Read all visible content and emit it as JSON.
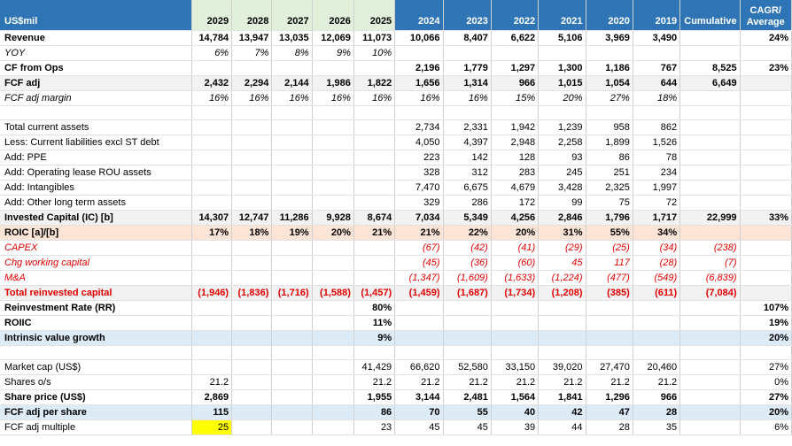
{
  "headers": [
    "US$mil",
    "2029",
    "2028",
    "2027",
    "2026",
    "2025",
    "2024",
    "2023",
    "2022",
    "2021",
    "2020",
    "2019",
    "Cumulative",
    "CAGR/ Average"
  ],
  "rows": [
    {
      "label": "Revenue",
      "style": "bold",
      "vals": [
        "14,784",
        "13,947",
        "13,035",
        "12,069",
        "11,073",
        "10,066",
        "8,407",
        "6,622",
        "5,106",
        "3,969",
        "3,490",
        "",
        "24%"
      ]
    },
    {
      "label": "YOY",
      "style": "ital",
      "vals": [
        "6%",
        "7%",
        "8%",
        "9%",
        "10%",
        "",
        "",
        "",
        "",
        "",
        "",
        "",
        ""
      ]
    },
    {
      "label": "CF from Ops",
      "style": "bold",
      "vals": [
        "",
        "",
        "",
        "",
        "",
        "2,196",
        "1,779",
        "1,297",
        "1,300",
        "1,186",
        "767",
        "8,525",
        "23%"
      ]
    },
    {
      "label": "FCF adj",
      "style": "bold grey",
      "vals": [
        "2,432",
        "2,294",
        "2,144",
        "1,986",
        "1,822",
        "1,656",
        "1,314",
        "966",
        "1,015",
        "1,054",
        "644",
        "6,649",
        ""
      ]
    },
    {
      "label": "FCF adj margin",
      "style": "ital",
      "vals": [
        "16%",
        "16%",
        "16%",
        "16%",
        "16%",
        "16%",
        "16%",
        "15%",
        "20%",
        "27%",
        "18%",
        "",
        ""
      ]
    },
    {
      "label": "",
      "style": "blank",
      "vals": [
        "",
        "",
        "",
        "",
        "",
        "",
        "",
        "",
        "",
        "",
        "",
        "",
        ""
      ]
    },
    {
      "label": "Total current assets",
      "style": "",
      "vals": [
        "",
        "",
        "",
        "",
        "",
        "2,734",
        "2,331",
        "1,942",
        "1,239",
        "958",
        "862",
        "",
        ""
      ]
    },
    {
      "label": "Less: Current liabilities excl ST debt",
      "style": "",
      "vals": [
        "",
        "",
        "",
        "",
        "",
        "4,050",
        "4,397",
        "2,948",
        "2,258",
        "1,899",
        "1,526",
        "",
        ""
      ]
    },
    {
      "label": "Add: PPE",
      "style": "",
      "vals": [
        "",
        "",
        "",
        "",
        "",
        "223",
        "142",
        "128",
        "93",
        "86",
        "78",
        "",
        ""
      ]
    },
    {
      "label": "Add: Operating lease ROU assets",
      "style": "",
      "vals": [
        "",
        "",
        "",
        "",
        "",
        "328",
        "312",
        "283",
        "245",
        "251",
        "234",
        "",
        ""
      ]
    },
    {
      "label": "Add: Intangibles",
      "style": "",
      "vals": [
        "",
        "",
        "",
        "",
        "",
        "7,470",
        "6,675",
        "4,679",
        "3,428",
        "2,325",
        "1,997",
        "",
        ""
      ]
    },
    {
      "label": "Add: Other long term assets",
      "style": "",
      "vals": [
        "",
        "",
        "",
        "",
        "",
        "329",
        "286",
        "172",
        "99",
        "75",
        "72",
        "",
        ""
      ]
    },
    {
      "label": "Invested Capital (IC) [b]",
      "style": "bold grey",
      "vals": [
        "14,307",
        "12,747",
        "11,286",
        "9,928",
        "8,674",
        "7,034",
        "5,349",
        "4,256",
        "2,846",
        "1,796",
        "1,717",
        "22,999",
        "33%"
      ]
    },
    {
      "label": "ROIC [a]/[b]",
      "style": "bold salmon",
      "vals": [
        "17%",
        "18%",
        "19%",
        "20%",
        "21%",
        "21%",
        "22%",
        "20%",
        "31%",
        "55%",
        "34%",
        "",
        ""
      ]
    },
    {
      "label": "CAPEX",
      "style": "ital red",
      "vals": [
        "",
        "",
        "",
        "",
        "",
        "(67)",
        "(42)",
        "(41)",
        "(29)",
        "(25)",
        "(34)",
        "(238)",
        ""
      ]
    },
    {
      "label": "Chg working capital",
      "style": "ital red",
      "vals": [
        "",
        "",
        "",
        "",
        "",
        "(45)",
        "(36)",
        "(60)",
        "45",
        "117",
        "(28)",
        "(7)",
        ""
      ]
    },
    {
      "label": "M&A",
      "style": "ital red",
      "vals": [
        "",
        "",
        "",
        "",
        "",
        "(1,347)",
        "(1,609)",
        "(1,633)",
        "(1,224)",
        "(477)",
        "(549)",
        "(6,839)",
        ""
      ]
    },
    {
      "label": "Total reinvested capital",
      "style": "bold red grey",
      "vals": [
        "(1,946)",
        "(1,836)",
        "(1,716)",
        "(1,588)",
        "(1,457)",
        "(1,459)",
        "(1,687)",
        "(1,734)",
        "(1,208)",
        "(385)",
        "(611)",
        "(7,084)",
        ""
      ]
    },
    {
      "label": "Reinvestment Rate (RR)",
      "style": "bold",
      "vals": [
        "",
        "",
        "",
        "",
        "80%",
        "",
        "",
        "",
        "",
        "",
        "",
        "",
        "107%"
      ]
    },
    {
      "label": "ROIIC",
      "style": "bold",
      "vals": [
        "",
        "",
        "",
        "",
        "11%",
        "",
        "",
        "",
        "",
        "",
        "",
        "",
        "19%"
      ]
    },
    {
      "label": "Intrinsic value growth",
      "style": "bold blue",
      "vals": [
        "",
        "",
        "",
        "",
        "9%",
        "",
        "",
        "",
        "",
        "",
        "",
        "",
        "20%"
      ]
    },
    {
      "label": "",
      "style": "blank",
      "vals": [
        "",
        "",
        "",
        "",
        "",
        "",
        "",
        "",
        "",
        "",
        "",
        "",
        ""
      ]
    },
    {
      "label": "Market cap (US$)",
      "style": "",
      "vals": [
        "",
        "",
        "",
        "",
        "41,429",
        "66,620",
        "52,580",
        "33,150",
        "39,020",
        "27,470",
        "20,460",
        "",
        "27%"
      ]
    },
    {
      "label": "Shares o/s",
      "style": "",
      "vals": [
        "21.2",
        "",
        "",
        "",
        "21.2",
        "21.2",
        "21.2",
        "21.2",
        "21.2",
        "21.2",
        "21.2",
        "",
        "0%"
      ]
    },
    {
      "label": "Share price (US$)",
      "style": "bold",
      "vals": [
        "2,869",
        "",
        "",
        "",
        "1,955",
        "3,144",
        "2,481",
        "1,564",
        "1,841",
        "1,296",
        "966",
        "",
        "27%"
      ]
    },
    {
      "label": "FCF adj per share",
      "style": "bold blue",
      "vals": [
        "115",
        "",
        "",
        "",
        "86",
        "70",
        "55",
        "40",
        "42",
        "47",
        "28",
        "",
        "20%"
      ]
    },
    {
      "label": "FCF adj multiple",
      "style": "",
      "vals": [
        "25",
        "",
        "",
        "",
        "23",
        "45",
        "45",
        "39",
        "44",
        "28",
        "35",
        "",
        "6%"
      ]
    }
  ],
  "highlight": {
    "row": 26,
    "col": 0
  }
}
